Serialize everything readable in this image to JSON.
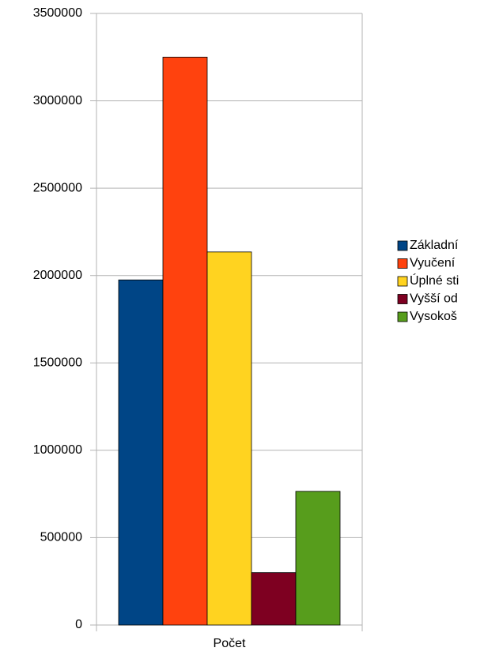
{
  "chart_data": {
    "type": "bar",
    "categories": [
      "Počet"
    ],
    "series": [
      {
        "name": "Základní",
        "color": "#004586",
        "values": [
          1975000
        ]
      },
      {
        "name": "Vyučení",
        "color": "#ff420e",
        "values": [
          3250000
        ]
      },
      {
        "name": "Úplné sti",
        "color": "#ffd320",
        "values": [
          2135000
        ]
      },
      {
        "name": "Vyšší od",
        "color": "#7e0021",
        "values": [
          300000
        ]
      },
      {
        "name": "Vysokoš",
        "color": "#579d1c",
        "values": [
          765000
        ]
      }
    ],
    "ylim": [
      0,
      3500000
    ],
    "yticks": [
      0,
      500000,
      1000000,
      1500000,
      2000000,
      2500000,
      3000000,
      3500000
    ],
    "grid": true,
    "legend": "right"
  }
}
